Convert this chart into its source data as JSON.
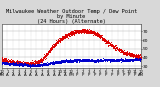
{
  "title": "Milwaukee Weather Outdoor Temp / Dew Point\nby Minute\n(24 Hours) (Alternate)",
  "title_fontsize": 3.8,
  "bg_color": "#d8d8d8",
  "plot_bg_color": "#ffffff",
  "grid_color": "#aaaaaa",
  "red_color": "#dd0000",
  "blue_color": "#0000cc",
  "ylim": [
    28,
    78
  ],
  "yticks": [
    30,
    40,
    50,
    60,
    70
  ],
  "ytick_labels": [
    "30",
    "40",
    "50",
    "60",
    "70"
  ],
  "ytick_fontsize": 3.2,
  "xtick_fontsize": 2.8,
  "hours": [
    0,
    1,
    2,
    3,
    4,
    5,
    6,
    7,
    8,
    9,
    10,
    11,
    12,
    13,
    14,
    15,
    16,
    17,
    18,
    19,
    20,
    21,
    22,
    23,
    24
  ],
  "temp_values": [
    38,
    36,
    35,
    34,
    33,
    33,
    34,
    38,
    46,
    54,
    60,
    65,
    68,
    70,
    71,
    70,
    68,
    64,
    59,
    54,
    50,
    46,
    44,
    42,
    40
  ],
  "dew_values": [
    34,
    33,
    33,
    32,
    32,
    31,
    31,
    32,
    33,
    34,
    35,
    36,
    36,
    37,
    37,
    37,
    36,
    37,
    37,
    37,
    37,
    37,
    37,
    38,
    38
  ],
  "temp_noise_std": 1.2,
  "dew_noise_std": 0.7,
  "marker_size": 0.5
}
